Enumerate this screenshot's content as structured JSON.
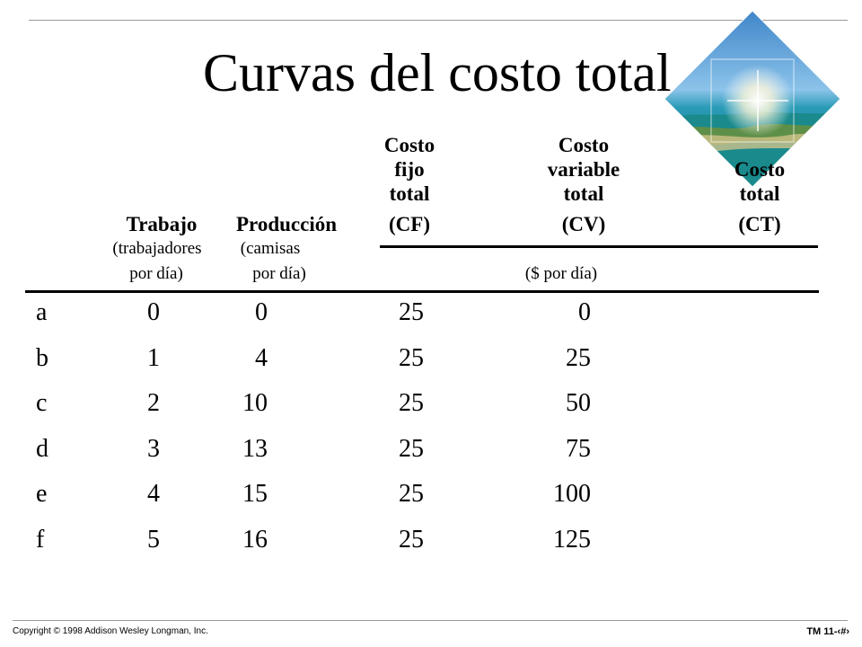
{
  "slide": {
    "title": "Curvas del costo total",
    "image_icon": "tropical-island-diamond-image"
  },
  "table": {
    "headers": {
      "trabajo": "Trabajo",
      "trabajo_unit_1": "(trabajadores",
      "trabajo_unit_2": "por día)",
      "produccion": "Producción",
      "produccion_unit_1": "(camisas",
      "produccion_unit_2": "por día)",
      "cf_line1": "Costo",
      "cf_line2": "fijo",
      "cf_line3": "total",
      "cf_abbr": "(CF)",
      "cv_line1": "Costo",
      "cv_line2": "variable",
      "cv_line3": "total",
      "cv_abbr": "(CV)",
      "ct_line1": "Costo",
      "ct_line2": "total",
      "ct_abbr": "(CT)",
      "money_unit": "($ por día)"
    },
    "rows": [
      {
        "label": "a",
        "trabajo": "0",
        "produccion": "0",
        "cf": "25",
        "cv": "0"
      },
      {
        "label": "b",
        "trabajo": "1",
        "produccion": "4",
        "cf": "25",
        "cv": "25"
      },
      {
        "label": "c",
        "trabajo": "2",
        "produccion": "10",
        "cf": "25",
        "cv": "50"
      },
      {
        "label": "d",
        "trabajo": "3",
        "produccion": "13",
        "cf": "25",
        "cv": "75"
      },
      {
        "label": "e",
        "trabajo": "4",
        "produccion": "15",
        "cf": "25",
        "cv": "100"
      },
      {
        "label": "f",
        "trabajo": "5",
        "produccion": "16",
        "cf": "25",
        "cv": "125"
      }
    ]
  },
  "footer": {
    "copyright": "Copyright © 1998 Addison Wesley Longman, Inc.",
    "slide_number": "TM 11-‹#›"
  }
}
